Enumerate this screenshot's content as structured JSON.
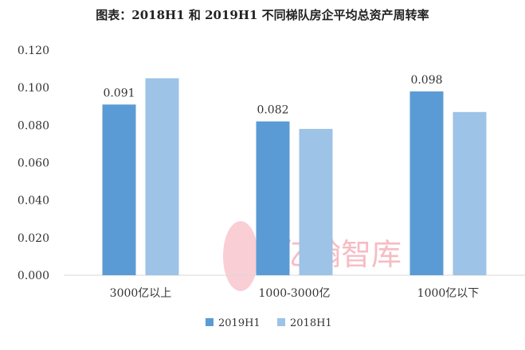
{
  "chart_data": {
    "type": "bar",
    "title": "图表：2018H1 和 2019H1 不同梯队房企平均总资产周转率",
    "categories": [
      "3000亿以上",
      "1000-3000亿",
      "1000亿以下"
    ],
    "series": [
      {
        "name": "2019H1",
        "values": [
          0.091,
          0.082,
          0.098
        ],
        "color": "#5b9bd5"
      },
      {
        "name": "2018H1",
        "values": [
          0.105,
          0.078,
          0.087
        ],
        "color": "#9dc3e6"
      }
    ],
    "data_labels": [
      {
        "series": 0,
        "category": 0,
        "text": "0.091"
      },
      {
        "series": 0,
        "category": 1,
        "text": "0.082"
      },
      {
        "series": 0,
        "category": 2,
        "text": "0.098"
      }
    ],
    "ylim": [
      0,
      0.12
    ],
    "yticks": [
      "0.000",
      "0.020",
      "0.040",
      "0.060",
      "0.080",
      "0.100",
      "0.120"
    ],
    "xlabel": "",
    "ylabel": "",
    "grid": false,
    "legend_position": "bottom"
  },
  "watermark": {
    "text": "亿翰智库",
    "color": "#f4a6b0"
  }
}
